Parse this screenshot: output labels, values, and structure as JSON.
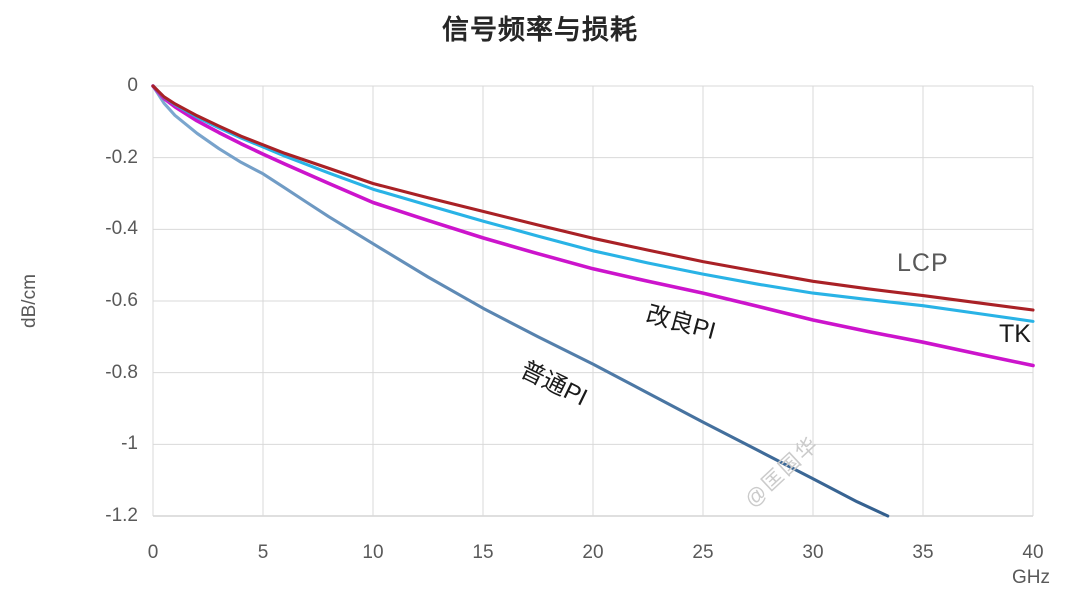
{
  "title": "信号频率与损耗",
  "watermark": "@匡国华",
  "y_axis": {
    "unit": "dB/cm",
    "ticks": [
      "0",
      "-0.2",
      "-0.4",
      "-0.6",
      "-0.8",
      "-1",
      "-1.2"
    ]
  },
  "x_axis": {
    "unit": "GHz",
    "ticks": [
      "0",
      "5",
      "10",
      "15",
      "20",
      "25",
      "30",
      "35",
      "40"
    ]
  },
  "chart_data": {
    "type": "line",
    "title": "信号频率与损耗",
    "xlabel": "GHz",
    "ylabel": "dB/cm",
    "xlim": [
      0,
      40
    ],
    "ylim": [
      -1.2,
      0
    ],
    "x_grid": [
      0,
      5,
      10,
      15,
      20,
      25,
      30,
      35,
      40
    ],
    "y_grid": [
      0,
      -0.2,
      -0.4,
      -0.6,
      -0.8,
      -1,
      -1.2
    ],
    "grid": true,
    "legend_position": "inline-labels-on-lines",
    "grid_color": "#d9d9d9",
    "axis_line_color": "#bfbfbf",
    "series": [
      {
        "name": "普通PI",
        "color": "#4E7FAE",
        "gradient": [
          "#7FAAD2",
          "#335F8E"
        ],
        "points": [
          [
            0,
            0
          ],
          [
            0.5,
            -0.048
          ],
          [
            1,
            -0.082
          ],
          [
            2,
            -0.132
          ],
          [
            3,
            -0.175
          ],
          [
            4,
            -0.213
          ],
          [
            5,
            -0.245
          ],
          [
            6,
            -0.285
          ],
          [
            7,
            -0.325
          ],
          [
            8,
            -0.365
          ],
          [
            10,
            -0.44
          ],
          [
            12.5,
            -0.533
          ],
          [
            15,
            -0.62
          ],
          [
            17.5,
            -0.7
          ],
          [
            20,
            -0.776
          ],
          [
            22.5,
            -0.857
          ],
          [
            25,
            -0.938
          ],
          [
            27.5,
            -1.017
          ],
          [
            30,
            -1.096
          ],
          [
            32,
            -1.16
          ],
          [
            33.4,
            -1.2
          ]
        ]
      },
      {
        "name": "改良PI",
        "color": "#CC14CC",
        "points": [
          [
            0,
            0
          ],
          [
            0.5,
            -0.035
          ],
          [
            1,
            -0.058
          ],
          [
            2,
            -0.097
          ],
          [
            3,
            -0.13
          ],
          [
            4,
            -0.161
          ],
          [
            5,
            -0.19
          ],
          [
            6,
            -0.218
          ],
          [
            8,
            -0.272
          ],
          [
            10,
            -0.325
          ],
          [
            12.5,
            -0.375
          ],
          [
            15,
            -0.424
          ],
          [
            17.5,
            -0.468
          ],
          [
            20,
            -0.51
          ],
          [
            22.5,
            -0.545
          ],
          [
            25,
            -0.578
          ],
          [
            27.5,
            -0.615
          ],
          [
            30,
            -0.653
          ],
          [
            32.5,
            -0.685
          ],
          [
            35,
            -0.715
          ],
          [
            37.5,
            -0.748
          ],
          [
            40,
            -0.78
          ]
        ]
      },
      {
        "name": "TK",
        "color": "#29B3E6",
        "points": [
          [
            0,
            0
          ],
          [
            0.5,
            -0.031
          ],
          [
            1,
            -0.052
          ],
          [
            2,
            -0.087
          ],
          [
            3,
            -0.117
          ],
          [
            4,
            -0.145
          ],
          [
            5,
            -0.17
          ],
          [
            6,
            -0.196
          ],
          [
            8,
            -0.243
          ],
          [
            10,
            -0.288
          ],
          [
            12.5,
            -0.333
          ],
          [
            15,
            -0.377
          ],
          [
            17.5,
            -0.419
          ],
          [
            20,
            -0.46
          ],
          [
            22.5,
            -0.494
          ],
          [
            25,
            -0.525
          ],
          [
            27.5,
            -0.553
          ],
          [
            30,
            -0.578
          ],
          [
            32.5,
            -0.596
          ],
          [
            35,
            -0.613
          ],
          [
            37.5,
            -0.635
          ],
          [
            40,
            -0.657
          ]
        ]
      },
      {
        "name": "LCP",
        "color": "#A92126",
        "points": [
          [
            0,
            0
          ],
          [
            0.5,
            -0.03
          ],
          [
            1,
            -0.05
          ],
          [
            2,
            -0.083
          ],
          [
            3,
            -0.112
          ],
          [
            4,
            -0.14
          ],
          [
            5,
            -0.164
          ],
          [
            6,
            -0.188
          ],
          [
            8,
            -0.23
          ],
          [
            10,
            -0.272
          ],
          [
            12.5,
            -0.312
          ],
          [
            15,
            -0.35
          ],
          [
            17.5,
            -0.388
          ],
          [
            20,
            -0.425
          ],
          [
            22.5,
            -0.458
          ],
          [
            25,
            -0.49
          ],
          [
            27.5,
            -0.518
          ],
          [
            30,
            -0.545
          ],
          [
            32.5,
            -0.566
          ],
          [
            35,
            -0.585
          ],
          [
            37.5,
            -0.605
          ],
          [
            40,
            -0.625
          ]
        ]
      }
    ]
  }
}
